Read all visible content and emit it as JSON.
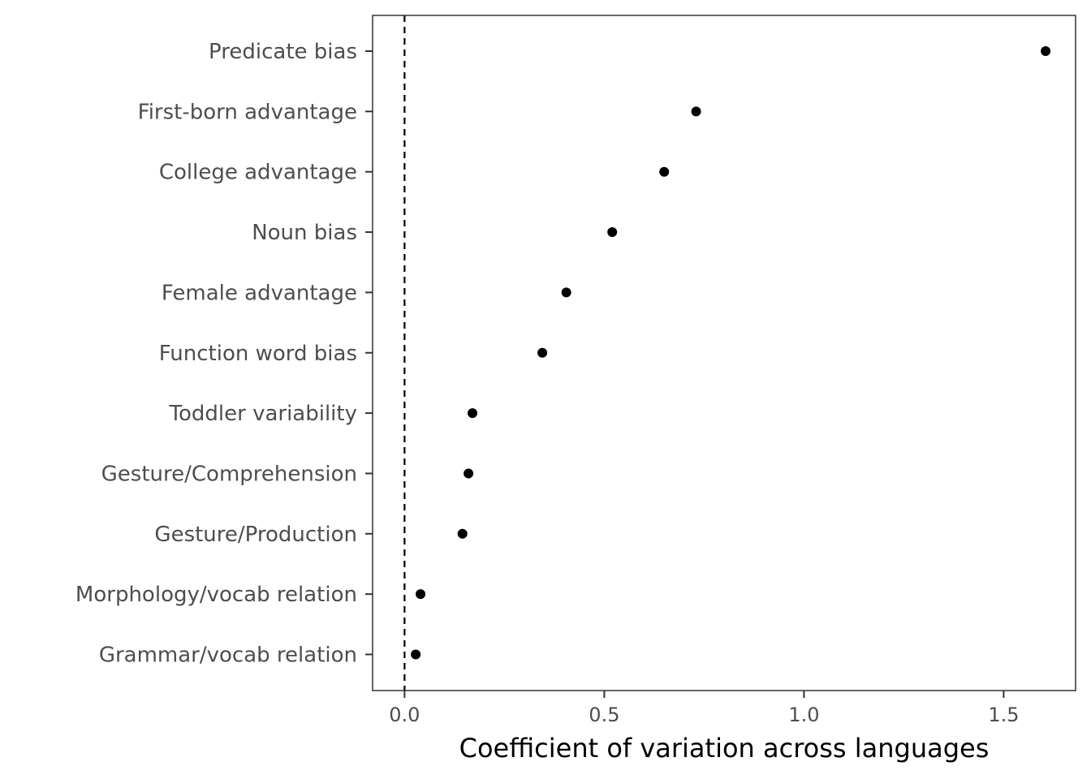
{
  "chart_data": {
    "type": "scatter",
    "title": "",
    "xlabel": "Coefficient of variation across languages",
    "ylabel": "",
    "xlim": [
      -0.08,
      1.68
    ],
    "xticks": [
      0.0,
      0.5,
      1.0,
      1.5
    ],
    "xtick_labels": [
      "0.0",
      "0.5",
      "1.0",
      "1.5"
    ],
    "reference_line": {
      "x": 0,
      "style": "dashed"
    },
    "grid": false,
    "legend": "none",
    "point_color": "#000000",
    "categories": [
      "Predicate bias",
      "First-born advantage",
      "College advantage",
      "Noun bias",
      "Female advantage",
      "Function word bias",
      "Toddler variability",
      "Gesture/Comprehension",
      "Gesture/Production",
      "Morphology/vocab relation",
      "Grammar/vocab relation"
    ],
    "values": [
      1.605,
      0.73,
      0.65,
      0.52,
      0.405,
      0.345,
      0.17,
      0.16,
      0.145,
      0.04,
      0.028
    ]
  }
}
